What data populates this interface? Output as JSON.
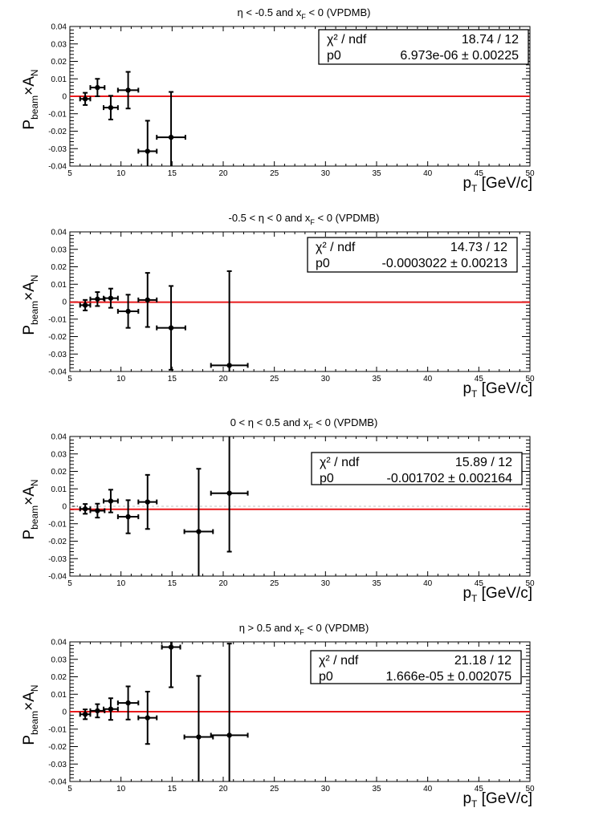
{
  "colors": {
    "fit_line": "#e8191b",
    "points": "#000000",
    "zero_line": "#c0c0c0",
    "frame": "#000000"
  },
  "labels": {
    "y_main": "P",
    "y_sub1": "beam",
    "y_times": "×A",
    "y_sub2": "N",
    "x_main": "p",
    "x_sub": "T",
    "x_unit": " [GeV/c]",
    "stat_header_left": "χ² / ndf",
    "stat_row_left": "p0"
  },
  "chart_data": [
    {
      "type": "scatter",
      "title": "η < -0.5 and x_F < 0 (VPDMB)",
      "title_parts": [
        "η < -0.5 and x",
        "F",
        " < 0 (VPDMB)"
      ],
      "xlim": [
        5,
        50
      ],
      "ylim": [
        -0.04,
        0.04
      ],
      "x_ticks": [
        5,
        10,
        15,
        20,
        25,
        30,
        35,
        40,
        45,
        50
      ],
      "y_ticks": [
        -0.04,
        -0.03,
        -0.02,
        -0.01,
        0,
        0.01,
        0.02,
        0.03,
        0.04
      ],
      "y_tick_labels": [
        "-0.04",
        "-0.03",
        "-0.02",
        "-0.01",
        "0",
        "0.01",
        "0.02",
        "0.03",
        "0.04"
      ],
      "points": [
        {
          "x": 6.5,
          "xerr": 0.5,
          "y": -0.0015,
          "yerr": 0.0035
        },
        {
          "x": 7.7,
          "xerr": 0.7,
          "y": 0.005,
          "yerr": 0.005
        },
        {
          "x": 9.0,
          "xerr": 0.7,
          "y": -0.0065,
          "yerr": 0.0068
        },
        {
          "x": 10.7,
          "xerr": 1.0,
          "y": 0.0035,
          "yerr": 0.0105
        },
        {
          "x": 12.6,
          "xerr": 0.9,
          "y": -0.0315,
          "yerr": 0.0175
        },
        {
          "x": 14.9,
          "xerr": 1.4,
          "y": -0.0235,
          "yerr": 0.026
        }
      ],
      "fit": {
        "p0": 6.973e-06
      },
      "stats": {
        "chi2_ndf": "18.74 / 12",
        "p0": "6.973e-06 ± 0.00225"
      }
    },
    {
      "type": "scatter",
      "title": "-0.5 < η < 0 and x_F < 0 (VPDMB)",
      "title_parts": [
        "-0.5 < η < 0 and x",
        "F",
        " < 0 (VPDMB)"
      ],
      "xlim": [
        5,
        50
      ],
      "ylim": [
        -0.04,
        0.04
      ],
      "x_ticks": [
        5,
        10,
        15,
        20,
        25,
        30,
        35,
        40,
        45,
        50
      ],
      "y_ticks": [
        -0.04,
        -0.03,
        -0.02,
        -0.01,
        0,
        0.01,
        0.02,
        0.03,
        0.04
      ],
      "y_tick_labels": [
        "-0.04",
        "-0.03",
        "-0.02",
        "-0.01",
        "0",
        "0.01",
        "0.02",
        "0.03",
        "0.04"
      ],
      "points": [
        {
          "x": 6.5,
          "xerr": 0.5,
          "y": -0.002,
          "yerr": 0.003
        },
        {
          "x": 7.7,
          "xerr": 0.7,
          "y": 0.0015,
          "yerr": 0.004
        },
        {
          "x": 9.0,
          "xerr": 0.7,
          "y": 0.002,
          "yerr": 0.0055
        },
        {
          "x": 10.7,
          "xerr": 1.0,
          "y": -0.0055,
          "yerr": 0.0095
        },
        {
          "x": 12.6,
          "xerr": 0.9,
          "y": 0.001,
          "yerr": 0.0155
        },
        {
          "x": 14.9,
          "xerr": 1.4,
          "y": -0.015,
          "yerr": 0.024
        },
        {
          "x": 20.6,
          "xerr": 1.8,
          "y": -0.0365,
          "yerr": 0.054
        }
      ],
      "fit": {
        "p0": -0.0003022
      },
      "stats": {
        "chi2_ndf": "14.73 / 12",
        "p0": "-0.0003022 ± 0.00213"
      }
    },
    {
      "type": "scatter",
      "title": "0 < η < 0.5 and x_F < 0 (VPDMB)",
      "title_parts": [
        "0 < η < 0.5 and x",
        "F",
        " < 0 (VPDMB)"
      ],
      "xlim": [
        5,
        50
      ],
      "ylim": [
        -0.04,
        0.04
      ],
      "x_ticks": [
        5,
        10,
        15,
        20,
        25,
        30,
        35,
        40,
        45,
        50
      ],
      "y_ticks": [
        -0.04,
        -0.03,
        -0.02,
        -0.01,
        0,
        0.01,
        0.02,
        0.03,
        0.04
      ],
      "y_tick_labels": [
        "-0.04",
        "-0.03",
        "-0.02",
        "-0.01",
        "0",
        "0.01",
        "0.02",
        "0.03",
        "0.04"
      ],
      "points": [
        {
          "x": 6.5,
          "xerr": 0.5,
          "y": -0.0015,
          "yerr": 0.0028
        },
        {
          "x": 7.7,
          "xerr": 0.7,
          "y": -0.0025,
          "yerr": 0.004
        },
        {
          "x": 9.0,
          "xerr": 0.7,
          "y": 0.003,
          "yerr": 0.0065
        },
        {
          "x": 10.7,
          "xerr": 1.0,
          "y": -0.006,
          "yerr": 0.0095
        },
        {
          "x": 12.6,
          "xerr": 0.9,
          "y": 0.0025,
          "yerr": 0.0155
        },
        {
          "x": 17.6,
          "xerr": 1.4,
          "y": -0.0145,
          "yerr": 0.036
        },
        {
          "x": 20.6,
          "xerr": 1.8,
          "y": 0.0075,
          "yerr": 0.0335
        }
      ],
      "fit": {
        "p0": -0.001702
      },
      "zero_line": true,
      "stats": {
        "chi2_ndf": "15.89 / 12",
        "p0": "-0.001702 ± 0.002164"
      }
    },
    {
      "type": "scatter",
      "title": "η > 0.5 and x_F < 0 (VPDMB)",
      "title_parts": [
        "η > 0.5 and x",
        "F",
        " < 0 (VPDMB)"
      ],
      "xlim": [
        5,
        50
      ],
      "ylim": [
        -0.04,
        0.04
      ],
      "x_ticks": [
        5,
        10,
        15,
        20,
        25,
        30,
        35,
        40,
        45,
        50
      ],
      "y_ticks": [
        -0.04,
        -0.03,
        -0.02,
        -0.01,
        0,
        0.01,
        0.02,
        0.03,
        0.04
      ],
      "y_tick_labels": [
        "-0.04",
        "-0.03",
        "-0.02",
        "-0.01",
        "0",
        "0.01",
        "0.02",
        "0.03",
        "0.04"
      ],
      "points": [
        {
          "x": 6.5,
          "xerr": 0.5,
          "y": -0.0015,
          "yerr": 0.0028
        },
        {
          "x": 7.7,
          "xerr": 0.7,
          "y": 0.0005,
          "yerr": 0.0038
        },
        {
          "x": 9.0,
          "xerr": 0.7,
          "y": 0.0015,
          "yerr": 0.0062
        },
        {
          "x": 10.7,
          "xerr": 1.0,
          "y": 0.005,
          "yerr": 0.0095
        },
        {
          "x": 12.6,
          "xerr": 0.9,
          "y": -0.0035,
          "yerr": 0.015
        },
        {
          "x": 14.9,
          "xerr": 0.9,
          "y": 0.037,
          "yerr": 0.023
        },
        {
          "x": 17.6,
          "xerr": 1.4,
          "y": -0.0145,
          "yerr": 0.035
        },
        {
          "x": 20.6,
          "xerr": 1.8,
          "y": -0.0135,
          "yerr": 0.0525
        }
      ],
      "fit": {
        "p0": 1.666e-05
      },
      "stats": {
        "chi2_ndf": "21.18 / 12",
        "p0": "1.666e-05 ± 0.002075"
      }
    }
  ]
}
